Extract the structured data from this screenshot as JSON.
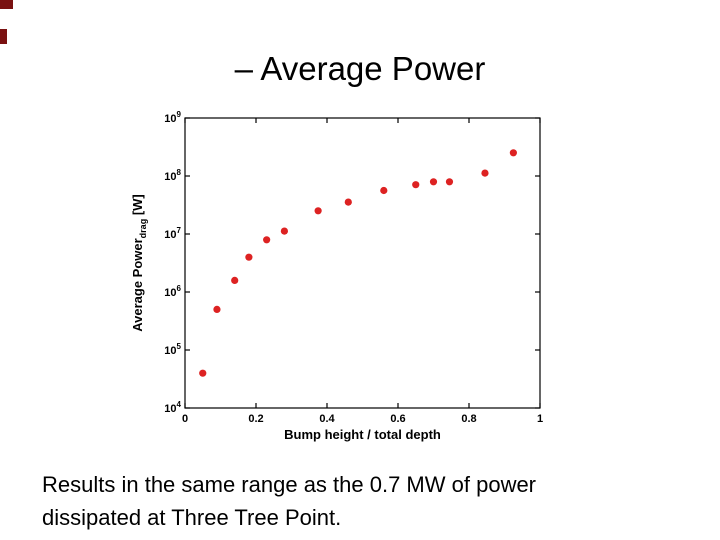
{
  "slide": {
    "title": "– Average Power",
    "caption": {
      "line1": "Results in the same range as the 0.7 MW of power",
      "line2": "dissipated at Three Tree Point."
    },
    "accent_color": "#7a1111"
  },
  "chart_data": {
    "type": "scatter",
    "title": "",
    "xlabel": "Bump height / total depth",
    "ylabel": {
      "main": "Average Power",
      "sub": "drag",
      "unit": " [W]"
    },
    "x_scale": "linear",
    "y_scale": "log",
    "xlim": [
      0,
      1
    ],
    "ylim_exponents": [
      4,
      9
    ],
    "x_ticks": [
      0,
      0.2,
      0.4,
      0.6,
      0.8,
      1
    ],
    "x_tick_labels": [
      "0",
      "0.2",
      "0.4",
      "0.6",
      "0.8",
      "1"
    ],
    "y_tick_exponents": [
      4,
      5,
      6,
      7,
      8,
      9
    ],
    "grid": false,
    "legend": "none",
    "marker": {
      "shape": "circle",
      "color": "#dd2222",
      "radius": 3.6
    },
    "x": [
      0.05,
      0.09,
      0.14,
      0.18,
      0.23,
      0.28,
      0.375,
      0.46,
      0.56,
      0.65,
      0.7,
      0.745,
      0.845,
      0.925
    ],
    "y_log10_watts": [
      4.6,
      5.7,
      6.2,
      6.6,
      6.9,
      7.05,
      7.4,
      7.55,
      7.75,
      7.85,
      7.9,
      7.9,
      8.05,
      8.4
    ]
  }
}
